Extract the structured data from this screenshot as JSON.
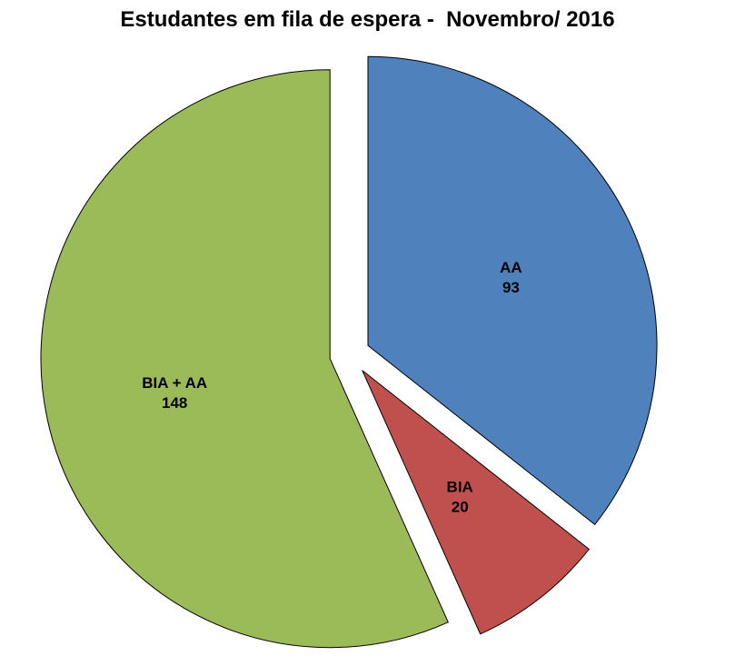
{
  "title": "Estudantes em fila de espera -  Novembro/ 2016",
  "chart_data": {
    "type": "pie",
    "title": "Estudantes em fila de espera -  Novembro/ 2016",
    "slices": [
      {
        "label": "AA",
        "value": 93,
        "color": "#4F81BD"
      },
      {
        "label": "BIA",
        "value": 20,
        "color": "#C0504D"
      },
      {
        "label": "BIA + AA",
        "value": 148,
        "color": "#9BBB59"
      }
    ],
    "total": 261,
    "start_angle_deg": 90,
    "direction": "clockwise",
    "explode": 0.07,
    "label_position": "inside",
    "legend": "none",
    "background": "#FFFFFF",
    "outline_color": "#000000"
  }
}
